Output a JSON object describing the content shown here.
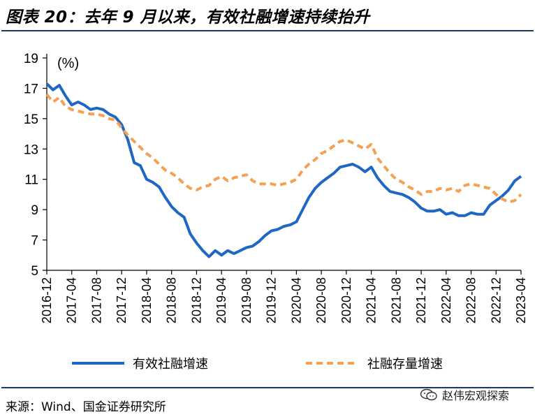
{
  "header": {
    "title": "图表 20：去年 9 月以来，有效社融增速持续抬升"
  },
  "footer": {
    "source": "来源：Wind、国金证券研究所",
    "watermark": "赵伟宏观探索"
  },
  "colors": {
    "series1": "#1f67c5",
    "series2": "#f5a052",
    "rule": "#1b3a6b"
  },
  "chart_data": {
    "type": "line",
    "unit_label": "(%)",
    "ylim": [
      5,
      19
    ],
    "yticks": [
      5,
      7,
      9,
      11,
      13,
      15,
      17,
      19
    ],
    "xtick_labels": [
      "2016-12",
      "2017-04",
      "2017-08",
      "2017-12",
      "2018-04",
      "2018-08",
      "2018-12",
      "2019-04",
      "2019-08",
      "2019-12",
      "2020-04",
      "2020-08",
      "2020-12",
      "2021-04",
      "2021-08",
      "2021-12",
      "2022-04",
      "2022-08",
      "2022-12",
      "2023-04"
    ],
    "x": [
      "2016-12",
      "2017-01",
      "2017-02",
      "2017-03",
      "2017-04",
      "2017-05",
      "2017-06",
      "2017-07",
      "2017-08",
      "2017-09",
      "2017-10",
      "2017-11",
      "2017-12",
      "2018-01",
      "2018-02",
      "2018-03",
      "2018-04",
      "2018-05",
      "2018-06",
      "2018-07",
      "2018-08",
      "2018-09",
      "2018-10",
      "2018-11",
      "2018-12",
      "2019-01",
      "2019-02",
      "2019-03",
      "2019-04",
      "2019-05",
      "2019-06",
      "2019-07",
      "2019-08",
      "2019-09",
      "2019-10",
      "2019-11",
      "2019-12",
      "2020-01",
      "2020-02",
      "2020-03",
      "2020-04",
      "2020-05",
      "2020-06",
      "2020-07",
      "2020-08",
      "2020-09",
      "2020-10",
      "2020-11",
      "2020-12",
      "2021-01",
      "2021-02",
      "2021-03",
      "2021-04",
      "2021-05",
      "2021-06",
      "2021-07",
      "2021-08",
      "2021-09",
      "2021-10",
      "2021-11",
      "2021-12",
      "2022-01",
      "2022-02",
      "2022-03",
      "2022-04",
      "2022-05",
      "2022-06",
      "2022-07",
      "2022-08",
      "2022-09",
      "2022-10",
      "2022-11",
      "2022-12",
      "2023-01",
      "2023-02",
      "2023-03",
      "2023-04"
    ],
    "series": [
      {
        "name": "有效社融增速",
        "style": "solid",
        "values": [
          17.3,
          16.9,
          17.2,
          16.5,
          15.9,
          16.1,
          15.9,
          15.6,
          15.7,
          15.6,
          15.3,
          15.1,
          14.6,
          13.6,
          12.1,
          11.9,
          11.0,
          10.8,
          10.5,
          9.8,
          9.2,
          8.8,
          8.5,
          7.4,
          6.8,
          6.3,
          5.9,
          6.3,
          6.0,
          6.3,
          6.1,
          6.3,
          6.5,
          6.6,
          6.9,
          7.3,
          7.6,
          7.7,
          7.9,
          8.0,
          8.2,
          9.0,
          9.8,
          10.4,
          10.8,
          11.1,
          11.4,
          11.8,
          11.9,
          12.0,
          11.8,
          11.5,
          11.8,
          11.1,
          10.6,
          10.2,
          10.1,
          10.0,
          9.8,
          9.5,
          9.1,
          8.9,
          8.9,
          9.0,
          8.7,
          8.8,
          8.6,
          8.6,
          8.8,
          8.7,
          8.7,
          9.3,
          9.6,
          9.9,
          10.3,
          10.9,
          11.2
        ]
      },
      {
        "name": "社融存量增速",
        "style": "dashed",
        "values": [
          16.6,
          16.1,
          16.4,
          15.8,
          15.6,
          15.5,
          15.4,
          15.3,
          15.3,
          15.2,
          15.0,
          14.9,
          14.4,
          13.9,
          13.5,
          13.1,
          12.7,
          12.4,
          12.0,
          11.6,
          11.4,
          11.1,
          10.7,
          10.4,
          10.3,
          10.5,
          10.6,
          11.0,
          11.2,
          10.9,
          11.1,
          11.2,
          11.3,
          10.9,
          10.7,
          10.7,
          10.7,
          10.6,
          10.7,
          10.8,
          11.0,
          11.6,
          12.0,
          12.3,
          12.7,
          12.9,
          13.2,
          13.5,
          13.6,
          13.4,
          13.2,
          13.0,
          13.3,
          12.4,
          11.9,
          11.4,
          11.0,
          10.8,
          10.5,
          10.3,
          10.0,
          10.2,
          10.2,
          10.4,
          10.3,
          10.4,
          10.2,
          10.6,
          10.7,
          10.6,
          10.5,
          10.4,
          10.0,
          9.7,
          9.5,
          9.6,
          10.0
        ]
      }
    ],
    "grid": false,
    "legend": "bottom"
  }
}
